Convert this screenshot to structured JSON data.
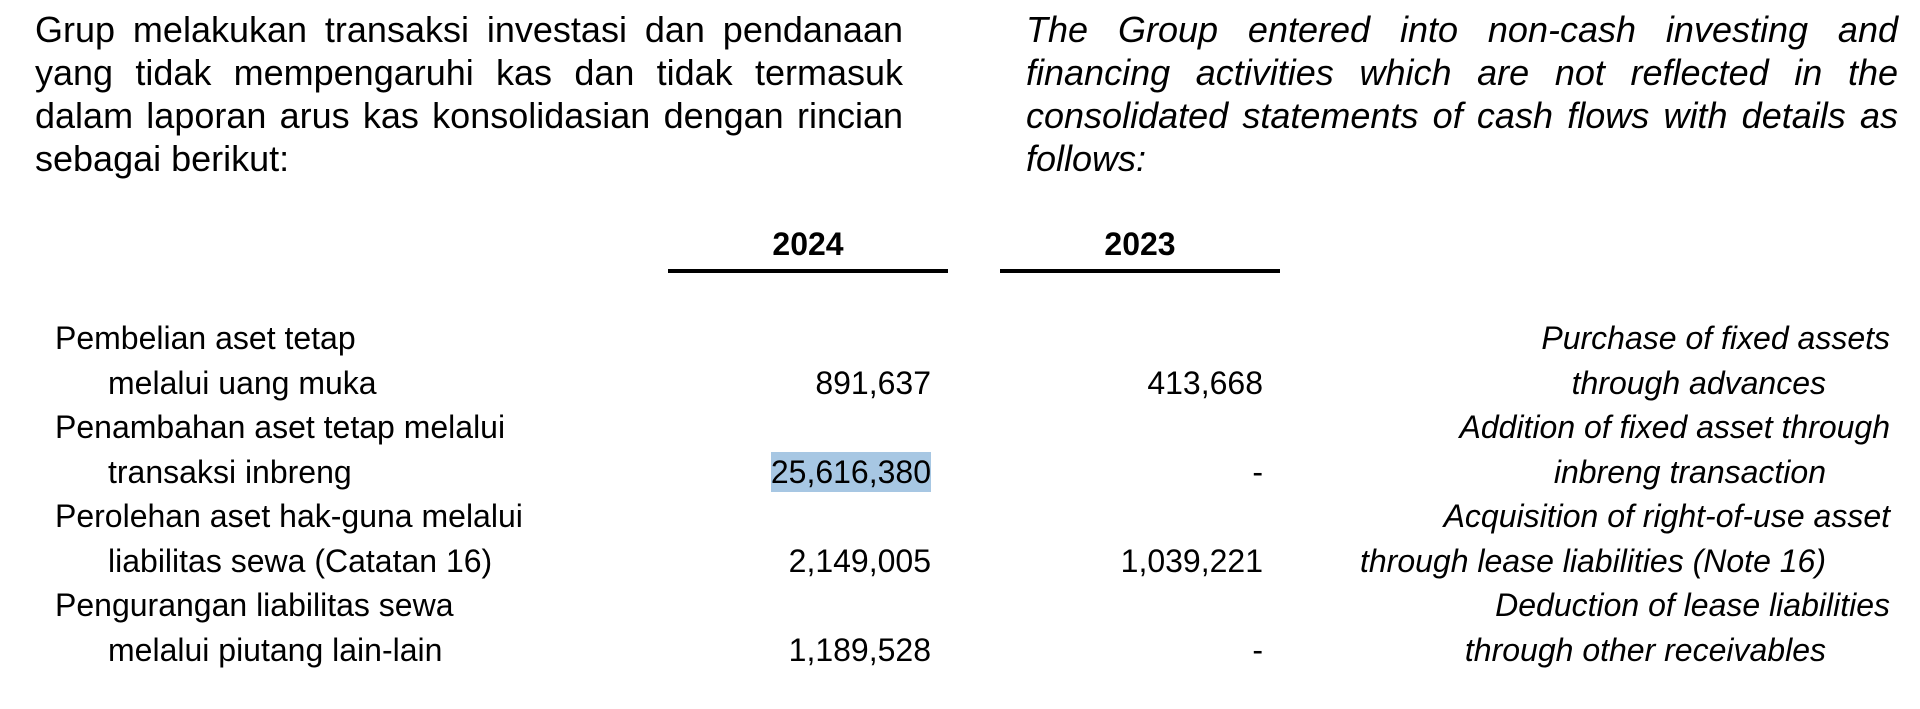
{
  "intro": {
    "id": "Grup melakukan transaksi investasi dan pendanaan yang tidak mempengaruhi kas dan tidak termasuk dalam laporan arus kas konsolidasian dengan rincian sebagai berikut:",
    "en": "The Group entered into non-cash investing and financing activities which are not reflected in the consolidated statements of cash flows with details as follows:"
  },
  "table": {
    "headers": [
      "2024",
      "2023"
    ],
    "rows": [
      {
        "label_id": [
          "Pembelian aset tetap",
          "melalui uang muka"
        ],
        "values": [
          "891,637",
          "413,668"
        ],
        "label_en": [
          "Purchase of fixed assets",
          "through advances"
        ]
      },
      {
        "label_id": [
          "Penambahan aset tetap melalui",
          "transaksi inbreng"
        ],
        "values": [
          "25,616,380",
          "-"
        ],
        "label_en": [
          "Addition of fixed asset through",
          "inbreng transaction"
        ]
      },
      {
        "label_id": [
          "Perolehan aset hak-guna melalui",
          "liabilitas sewa (Catatan 16)"
        ],
        "values": [
          "2,149,005",
          "1,039,221"
        ],
        "label_en": [
          "Acquisition of right-of-use asset",
          "through lease liabilities (Note 16)"
        ]
      },
      {
        "label_id": [
          "Pengurangan liabilitas sewa",
          "melalui piutang lain-lain"
        ],
        "values": [
          "1,189,528",
          "-"
        ],
        "label_en": [
          "Deduction of lease liabilities",
          "through other receivables"
        ]
      }
    ]
  }
}
